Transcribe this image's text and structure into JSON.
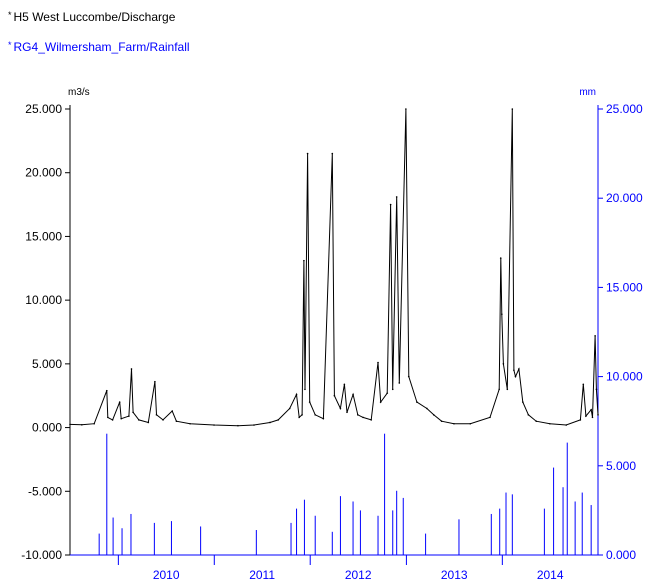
{
  "legend": {
    "series1": "H5 West Luccombe/Discharge",
    "series2": "RG4_Wilmersham_Farm/Rainfall",
    "marker": "*"
  },
  "colors": {
    "discharge": "#000000",
    "rainfall": "#0000ff",
    "left_axis": "#000000",
    "right_axis": "#0000ff"
  },
  "chart_data": {
    "type": "line",
    "x_type": "date",
    "x_range": [
      "2009-07-01",
      "2014-12-31"
    ],
    "x_ticks": [
      "2010",
      "2011",
      "2012",
      "2013",
      "2014"
    ],
    "left_axis": {
      "unit": "m3/s",
      "range": [
        -10,
        25
      ],
      "ticks": [
        "-10.000",
        "-5.000",
        "0.000",
        "5.000",
        "10.000",
        "15.000",
        "20.000",
        "25.000"
      ]
    },
    "right_axis": {
      "unit": "mm",
      "range": [
        0,
        25
      ],
      "ticks": [
        "0.000",
        "5.000",
        "10.000",
        "15.000",
        "20.000",
        "25.000"
      ]
    },
    "series": [
      {
        "name": "H5 West Luccombe/Discharge",
        "axis": "left",
        "color": "#000000",
        "points": [
          [
            "2009-07-01",
            0.25
          ],
          [
            "2009-08-15",
            0.22
          ],
          [
            "2009-10-01",
            0.3
          ],
          [
            "2009-11-18",
            2.9
          ],
          [
            "2009-11-22",
            0.8
          ],
          [
            "2009-12-10",
            0.6
          ],
          [
            "2010-01-06",
            2.0
          ],
          [
            "2010-01-12",
            0.7
          ],
          [
            "2010-02-10",
            0.9
          ],
          [
            "2010-02-20",
            4.6
          ],
          [
            "2010-02-26",
            1.2
          ],
          [
            "2010-03-20",
            0.6
          ],
          [
            "2010-04-25",
            0.4
          ],
          [
            "2010-05-20",
            3.6
          ],
          [
            "2010-05-26",
            1.0
          ],
          [
            "2010-06-20",
            0.6
          ],
          [
            "2010-07-25",
            1.3
          ],
          [
            "2010-08-10",
            0.5
          ],
          [
            "2010-10-01",
            0.3
          ],
          [
            "2010-12-31",
            0.2
          ],
          [
            "2011-04-01",
            0.15
          ],
          [
            "2011-06-01",
            0.2
          ],
          [
            "2011-08-01",
            0.4
          ],
          [
            "2011-09-01",
            0.6
          ],
          [
            "2011-10-15",
            1.5
          ],
          [
            "2011-11-10",
            2.6
          ],
          [
            "2011-11-20",
            0.8
          ],
          [
            "2011-12-01",
            1.0
          ],
          [
            "2011-12-08",
            13.1
          ],
          [
            "2011-12-12",
            3.0
          ],
          [
            "2011-12-22",
            21.5
          ],
          [
            "2011-12-30",
            2.0
          ],
          [
            "2012-01-20",
            1.0
          ],
          [
            "2012-02-20",
            0.7
          ],
          [
            "2012-03-25",
            21.5
          ],
          [
            "2012-04-02",
            2.5
          ],
          [
            "2012-04-25",
            1.5
          ],
          [
            "2012-05-10",
            3.4
          ],
          [
            "2012-05-20",
            1.2
          ],
          [
            "2012-06-12",
            2.6
          ],
          [
            "2012-06-30",
            1.0
          ],
          [
            "2012-07-20",
            0.8
          ],
          [
            "2012-08-20",
            0.6
          ],
          [
            "2012-09-15",
            5.1
          ],
          [
            "2012-09-25",
            2.0
          ],
          [
            "2012-10-20",
            2.7
          ],
          [
            "2012-11-02",
            17.5
          ],
          [
            "2012-11-10",
            3.0
          ],
          [
            "2012-11-25",
            18.1
          ],
          [
            "2012-12-05",
            3.5
          ],
          [
            "2012-12-30",
            25.0
          ],
          [
            "2013-01-10",
            4.0
          ],
          [
            "2013-02-10",
            2.0
          ],
          [
            "2013-03-20",
            1.5
          ],
          [
            "2013-04-15",
            1.0
          ],
          [
            "2013-05-15",
            0.5
          ],
          [
            "2013-07-01",
            0.3
          ],
          [
            "2013-09-01",
            0.3
          ],
          [
            "2013-11-15",
            0.8
          ],
          [
            "2013-12-20",
            3.0
          ],
          [
            "2013-12-26",
            13.3
          ],
          [
            "2013-12-30",
            8.9
          ],
          [
            "2014-01-05",
            5.0
          ],
          [
            "2014-01-20",
            3.0
          ],
          [
            "2014-02-08",
            25.0
          ],
          [
            "2014-02-14",
            4.5
          ],
          [
            "2014-02-20",
            4.0
          ],
          [
            "2014-03-05",
            4.6
          ],
          [
            "2014-03-20",
            2.0
          ],
          [
            "2014-04-10",
            1.0
          ],
          [
            "2014-05-10",
            0.5
          ],
          [
            "2014-07-01",
            0.3
          ],
          [
            "2014-09-01",
            0.2
          ],
          [
            "2014-10-25",
            0.6
          ],
          [
            "2014-11-05",
            3.4
          ],
          [
            "2014-11-15",
            0.9
          ],
          [
            "2014-12-05",
            1.4
          ],
          [
            "2014-12-10",
            0.8
          ],
          [
            "2014-12-20",
            7.2
          ],
          [
            "2014-12-25",
            3.0
          ],
          [
            "2014-12-31",
            1.0
          ]
        ]
      },
      {
        "name": "RG4_Wilmersham_Farm/Rainfall",
        "axis": "right",
        "color": "#0000ff",
        "points": [
          [
            "2009-11-18",
            6.8
          ],
          [
            "2009-10-20",
            1.2
          ],
          [
            "2009-12-12",
            2.1
          ],
          [
            "2010-01-15",
            1.5
          ],
          [
            "2010-02-18",
            2.3
          ],
          [
            "2010-05-18",
            1.8
          ],
          [
            "2010-07-22",
            1.9
          ],
          [
            "2010-11-10",
            1.6
          ],
          [
            "2011-06-10",
            1.4
          ],
          [
            "2011-10-20",
            1.8
          ],
          [
            "2011-11-10",
            2.6
          ],
          [
            "2011-12-10",
            3.1
          ],
          [
            "2012-01-20",
            2.2
          ],
          [
            "2012-03-25",
            1.3
          ],
          [
            "2012-04-25",
            3.3
          ],
          [
            "2012-06-12",
            3.0
          ],
          [
            "2012-07-10",
            2.5
          ],
          [
            "2012-09-15",
            2.2
          ],
          [
            "2012-10-10",
            6.8
          ],
          [
            "2012-11-10",
            2.5
          ],
          [
            "2012-11-25",
            3.6
          ],
          [
            "2012-12-20",
            3.2
          ],
          [
            "2013-03-15",
            1.2
          ],
          [
            "2013-07-20",
            2.0
          ],
          [
            "2013-11-20",
            2.3
          ],
          [
            "2013-12-22",
            2.6
          ],
          [
            "2014-01-15",
            3.5
          ],
          [
            "2014-02-08",
            3.4
          ],
          [
            "2014-06-10",
            2.6
          ],
          [
            "2014-07-15",
            4.9
          ],
          [
            "2014-08-20",
            3.8
          ],
          [
            "2014-09-05",
            6.3
          ],
          [
            "2014-10-05",
            3.0
          ],
          [
            "2014-11-01",
            3.5
          ],
          [
            "2014-12-05",
            2.8
          ]
        ]
      }
    ]
  }
}
